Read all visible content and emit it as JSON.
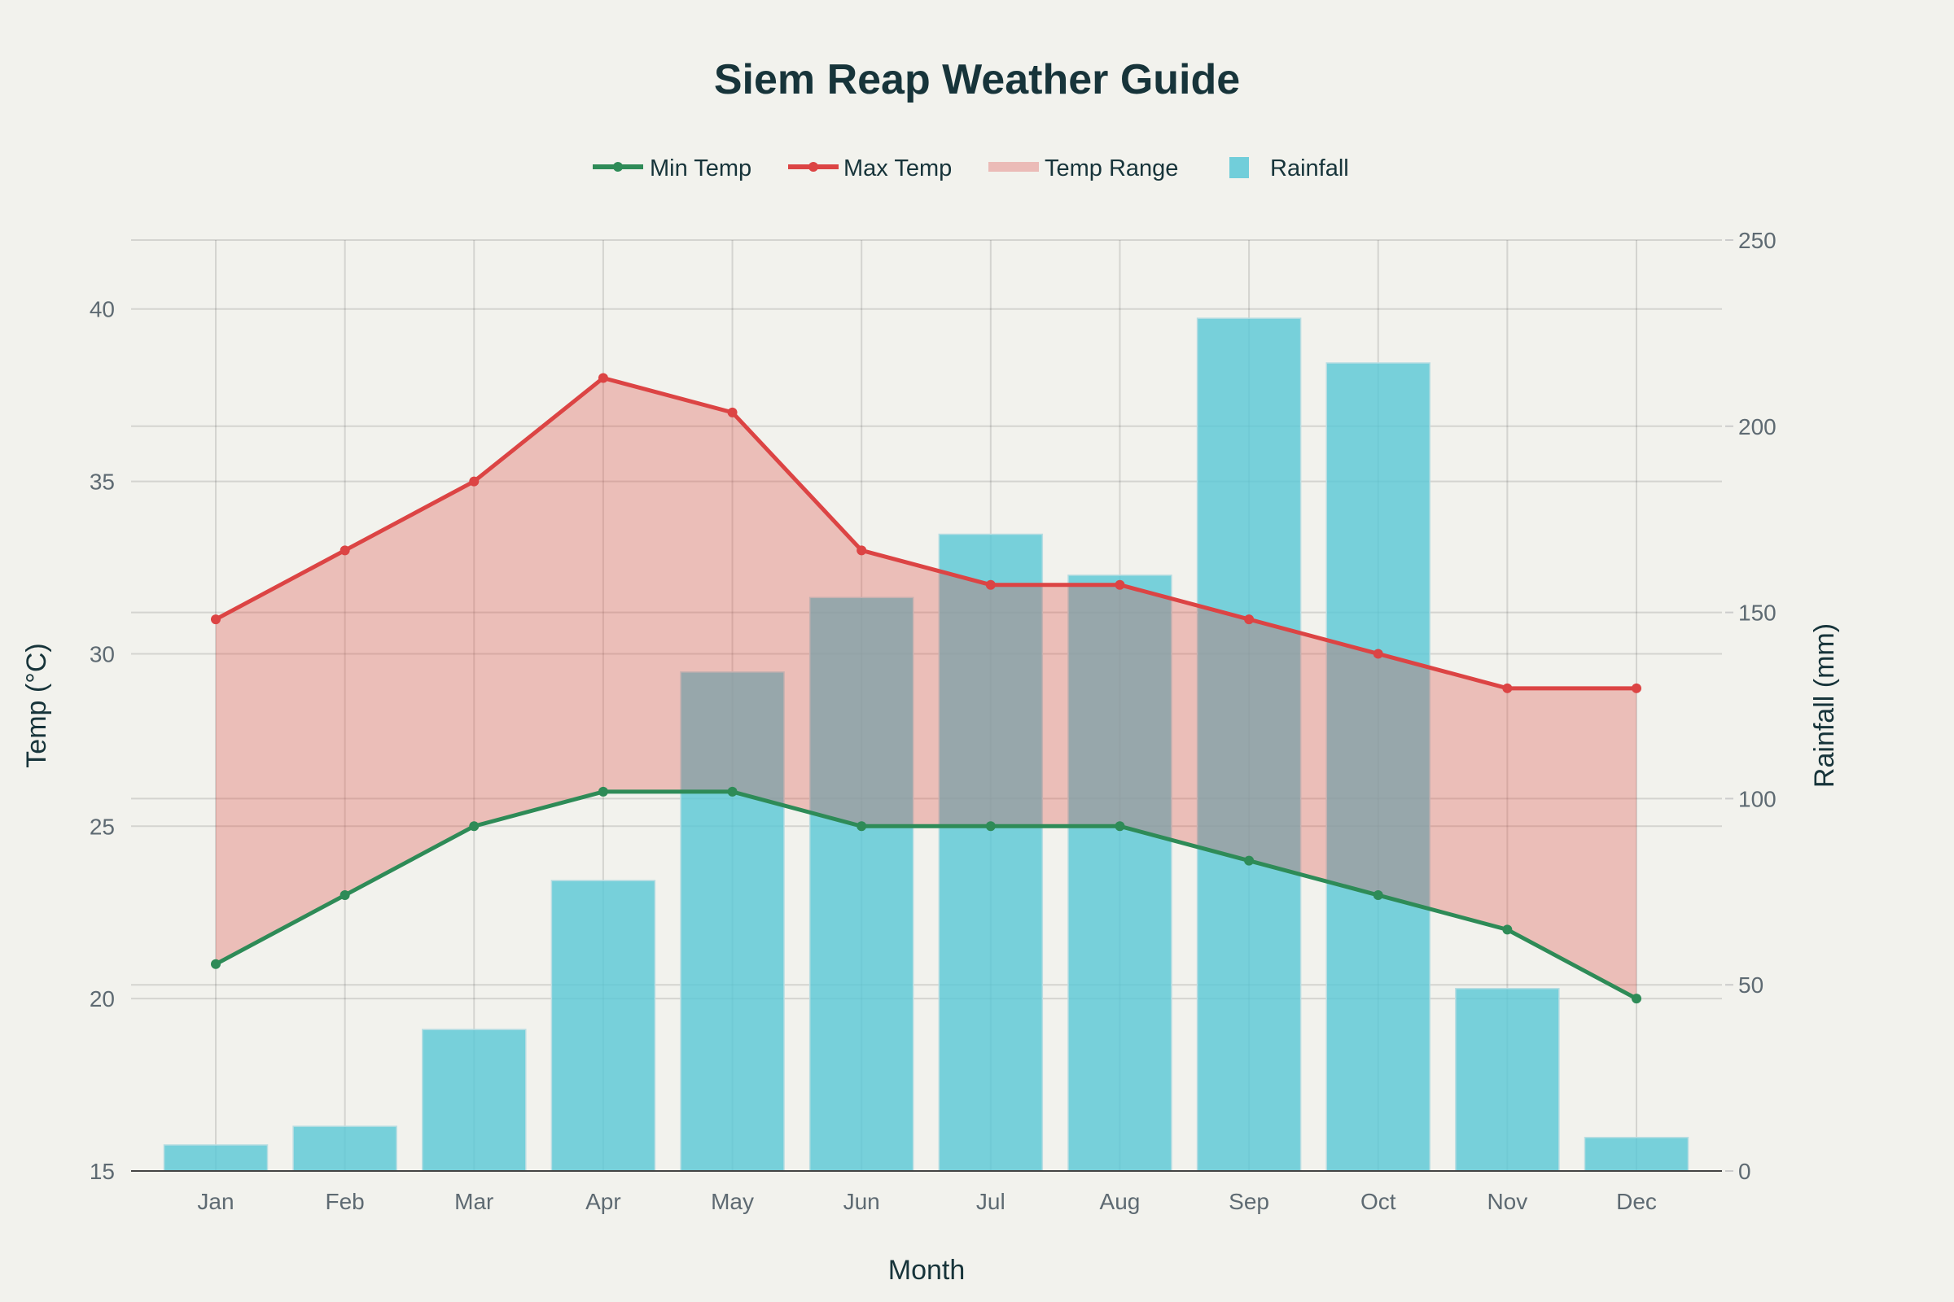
{
  "chart_data": {
    "type": "bar+line",
    "title": "Siem Reap Weather Guide",
    "xlabel": "Month",
    "ylabel": "Temp (°C)",
    "y2label": "Rainfall (mm)",
    "categories": [
      "Jan",
      "Feb",
      "Mar",
      "Apr",
      "May",
      "Jun",
      "Jul",
      "Aug",
      "Sep",
      "Oct",
      "Nov",
      "Dec"
    ],
    "ylim": [
      15,
      42
    ],
    "y2lim": [
      0,
      250
    ],
    "yticks": [
      15,
      20,
      25,
      30,
      35,
      40
    ],
    "y2ticks": [
      0,
      50,
      100,
      150,
      200,
      250
    ],
    "grid": true,
    "legend_position": "top-center",
    "series": [
      {
        "name": "Min Temp",
        "type": "line",
        "axis": "left",
        "color": "#2e8b57",
        "values": [
          21,
          23,
          25,
          26,
          26,
          25,
          25,
          25,
          24,
          23,
          22,
          20
        ]
      },
      {
        "name": "Max Temp",
        "type": "line",
        "axis": "left",
        "color": "#dc4444",
        "values": [
          31,
          33,
          35,
          38,
          37,
          33,
          32,
          32,
          31,
          30,
          29,
          29
        ]
      },
      {
        "name": "Temp Range",
        "type": "area",
        "axis": "left",
        "color": "#e8a8a4",
        "between": [
          "Min Temp",
          "Max Temp"
        ]
      },
      {
        "name": "Rainfall",
        "type": "bar",
        "axis": "right",
        "color": "#5bc8d6",
        "values": [
          7,
          12,
          38,
          78,
          134,
          154,
          171,
          160,
          229,
          217,
          49,
          9
        ]
      }
    ]
  }
}
